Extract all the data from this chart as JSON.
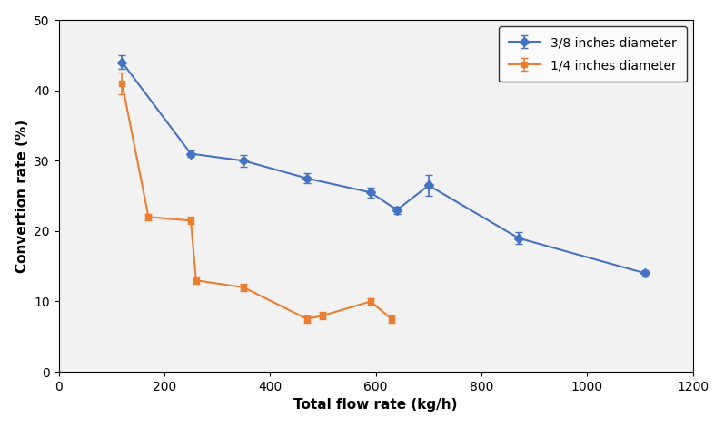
{
  "blue_x": [
    120,
    250,
    350,
    470,
    590,
    640,
    700,
    870,
    1110
  ],
  "blue_y": [
    44.0,
    31.0,
    30.0,
    27.5,
    25.5,
    23.0,
    26.5,
    19.0,
    14.0
  ],
  "blue_yerr": [
    1.0,
    0.5,
    0.8,
    0.7,
    0.7,
    0.5,
    1.5,
    0.8,
    0.5
  ],
  "orange_x": [
    120,
    170,
    250,
    260,
    350,
    470,
    500,
    590,
    630
  ],
  "orange_y": [
    41.0,
    22.0,
    21.5,
    13.0,
    12.0,
    7.5,
    8.0,
    10.0,
    7.5
  ],
  "orange_yerr": [
    1.5,
    0.5,
    0.5,
    0.5,
    0.5,
    0.5,
    0.5,
    0.5,
    0.5
  ],
  "blue_color": "#4472C4",
  "orange_color": "#ED7D31",
  "blue_label": "3/8 inches diameter",
  "orange_label": "1/4 inches diameter",
  "xlabel": "Total flow rate (kg/h)",
  "ylabel": "Convertion rate (%)",
  "xlim": [
    0,
    1200
  ],
  "ylim": [
    0,
    50
  ],
  "xticks": [
    0,
    200,
    400,
    600,
    800,
    1000,
    1200
  ],
  "yticks": [
    0,
    10,
    20,
    30,
    40,
    50
  ],
  "axis_fontsize": 11,
  "tick_fontsize": 10,
  "legend_fontsize": 10,
  "bg_color": "#F2F2F2",
  "fig_bg_color": "#FFFFFF"
}
